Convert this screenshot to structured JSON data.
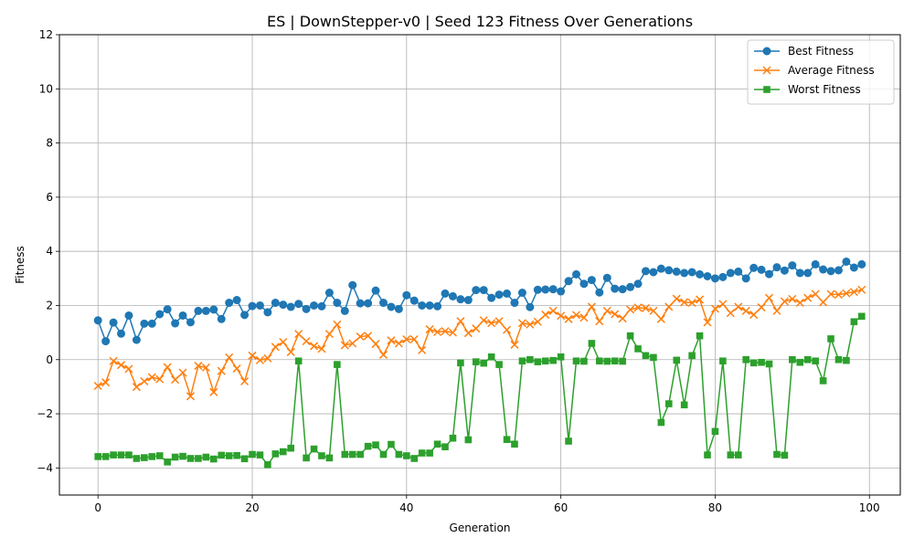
{
  "chart_data": {
    "type": "line",
    "title": "ES | DownStepper-v0 | Seed 123 Fitness Over Generations",
    "xlabel": "Generation",
    "ylabel": "Fitness",
    "xlim": [
      -5,
      104
    ],
    "ylim": [
      -5,
      12
    ],
    "xticks": [
      0,
      20,
      40,
      60,
      80,
      100
    ],
    "yticks": [
      -4,
      -2,
      0,
      2,
      4,
      6,
      8,
      10,
      12
    ],
    "grid": true,
    "legend_position": "top-right",
    "x": [
      0,
      1,
      2,
      3,
      4,
      5,
      6,
      7,
      8,
      9,
      10,
      11,
      12,
      13,
      14,
      15,
      16,
      17,
      18,
      19,
      20,
      21,
      22,
      23,
      24,
      25,
      26,
      27,
      28,
      29,
      30,
      31,
      32,
      33,
      34,
      35,
      36,
      37,
      38,
      39,
      40,
      41,
      42,
      43,
      44,
      45,
      46,
      47,
      48,
      49,
      50,
      51,
      52,
      53,
      54,
      55,
      56,
      57,
      58,
      59,
      60,
      61,
      62,
      63,
      64,
      65,
      66,
      67,
      68,
      69,
      70,
      71,
      72,
      73,
      74,
      75,
      76,
      77,
      78,
      79,
      80,
      81,
      82,
      83,
      84,
      85,
      86,
      87,
      88,
      89,
      90,
      91,
      92,
      93,
      94,
      95,
      96,
      97,
      98,
      99
    ],
    "series": [
      {
        "name": "Best Fitness",
        "color": "#1f77b4",
        "marker": "circle",
        "values": [
          1.45,
          0.68,
          1.37,
          0.96,
          1.63,
          0.73,
          1.33,
          1.33,
          1.68,
          1.86,
          1.34,
          1.63,
          1.38,
          1.8,
          1.8,
          1.85,
          1.5,
          2.1,
          2.2,
          1.65,
          1.98,
          2.0,
          1.75,
          2.1,
          2.03,
          1.95,
          2.06,
          1.87,
          2.0,
          1.97,
          2.47,
          2.1,
          1.8,
          2.75,
          2.08,
          2.08,
          2.55,
          2.1,
          1.95,
          1.87,
          2.38,
          2.18,
          2.0,
          2.0,
          1.97,
          2.44,
          2.34,
          2.23,
          2.2,
          2.57,
          2.57,
          2.28,
          2.4,
          2.44,
          2.1,
          2.47,
          1.94,
          2.58,
          2.59,
          2.6,
          2.52,
          2.9,
          3.15,
          2.8,
          2.94,
          2.48,
          3.02,
          2.62,
          2.6,
          2.68,
          2.8,
          3.27,
          3.23,
          3.36,
          3.3,
          3.25,
          3.2,
          3.23,
          3.15,
          3.08,
          3.0,
          3.05,
          3.2,
          3.25,
          3.0,
          3.39,
          3.32,
          3.16,
          3.41,
          3.29,
          3.48,
          3.2,
          3.2,
          3.52,
          3.33,
          3.27,
          3.3,
          3.62,
          3.4,
          3.52
        ]
      },
      {
        "name": "Average Fitness",
        "color": "#ff7f0e",
        "marker": "x",
        "values": [
          -0.97,
          -0.84,
          -0.05,
          -0.2,
          -0.34,
          -1.01,
          -0.8,
          -0.65,
          -0.72,
          -0.28,
          -0.74,
          -0.48,
          -1.35,
          -0.23,
          -0.29,
          -1.2,
          -0.42,
          0.08,
          -0.33,
          -0.8,
          0.15,
          -0.02,
          0.05,
          0.47,
          0.65,
          0.28,
          0.95,
          0.68,
          0.5,
          0.4,
          0.95,
          1.3,
          0.53,
          0.6,
          0.85,
          0.88,
          0.58,
          0.18,
          0.71,
          0.6,
          0.75,
          0.75,
          0.35,
          1.12,
          1.02,
          1.05,
          1.0,
          1.42,
          0.98,
          1.15,
          1.45,
          1.35,
          1.42,
          1.1,
          0.55,
          1.35,
          1.3,
          1.4,
          1.66,
          1.8,
          1.62,
          1.5,
          1.65,
          1.55,
          1.95,
          1.42,
          1.8,
          1.68,
          1.52,
          1.85,
          1.92,
          1.9,
          1.8,
          1.5,
          1.95,
          2.25,
          2.12,
          2.1,
          2.22,
          1.38,
          1.88,
          2.05,
          1.72,
          1.95,
          1.8,
          1.66,
          1.93,
          2.28,
          1.8,
          2.15,
          2.24,
          2.1,
          2.28,
          2.42,
          2.12,
          2.42,
          2.4,
          2.45,
          2.5,
          2.58
        ]
      },
      {
        "name": "Worst Fitness",
        "color": "#2ca02c",
        "marker": "square",
        "values": [
          -3.58,
          -3.58,
          -3.52,
          -3.52,
          -3.52,
          -3.65,
          -3.62,
          -3.58,
          -3.55,
          -3.78,
          -3.6,
          -3.57,
          -3.65,
          -3.65,
          -3.6,
          -3.67,
          -3.53,
          -3.55,
          -3.54,
          -3.66,
          -3.5,
          -3.52,
          -3.88,
          -3.48,
          -3.4,
          -3.27,
          -0.05,
          -3.63,
          -3.3,
          -3.55,
          -3.63,
          -0.18,
          -3.5,
          -3.5,
          -3.5,
          -3.2,
          -3.15,
          -3.5,
          -3.13,
          -3.5,
          -3.55,
          -3.65,
          -3.45,
          -3.45,
          -3.12,
          -3.22,
          -2.9,
          -0.12,
          -2.96,
          -0.08,
          -0.13,
          0.1,
          -0.18,
          -2.95,
          -3.12,
          -0.05,
          0.0,
          -0.08,
          -0.05,
          -0.03,
          0.1,
          -3.01,
          -0.05,
          -0.06,
          0.6,
          -0.05,
          -0.06,
          -0.05,
          -0.06,
          0.88,
          0.4,
          0.15,
          0.08,
          -2.32,
          -1.63,
          -0.02,
          -1.67,
          0.15,
          0.88,
          -3.52,
          -2.65,
          -0.05,
          -3.52,
          -3.52,
          0.0,
          -0.12,
          -0.1,
          -0.16,
          -3.5,
          -3.53,
          0.0,
          -0.1,
          0.0,
          -0.05,
          -0.78,
          0.77,
          0.0,
          -0.03,
          1.4,
          1.6
        ]
      }
    ]
  }
}
